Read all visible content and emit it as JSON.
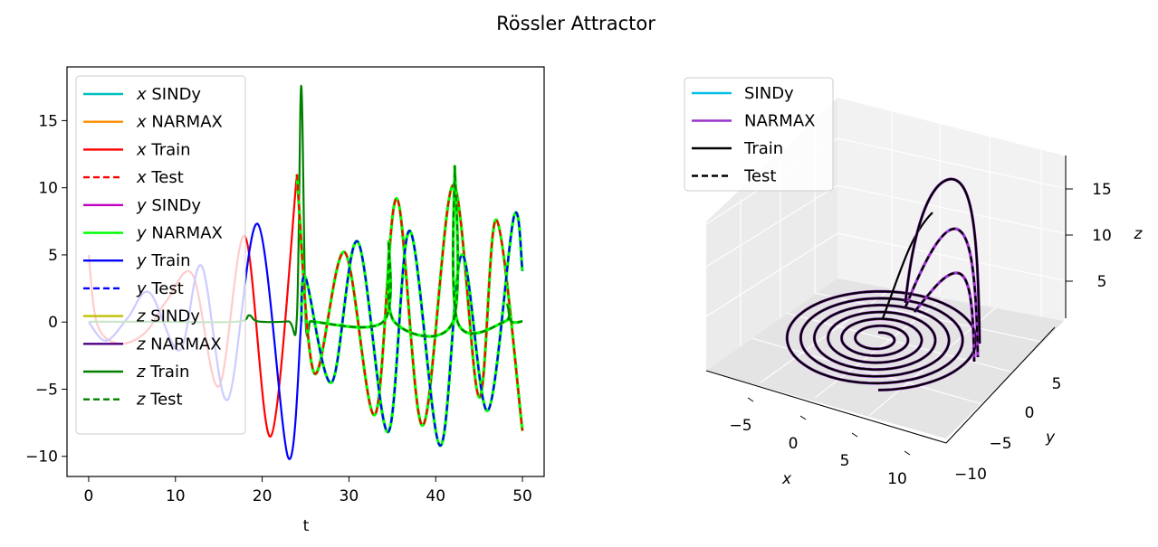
{
  "figure": {
    "suptitle": "Rössler Attractor"
  },
  "chart_data": [
    {
      "type": "line",
      "panel": "time-series",
      "xlabel": "t",
      "ylabel": "",
      "xlim": [
        -2.5,
        52.5
      ],
      "ylim": [
        -11.5,
        19.0
      ],
      "xticks": [
        0,
        10,
        20,
        30,
        40,
        50
      ],
      "yticks": [
        -10,
        -5,
        0,
        5,
        10,
        15
      ],
      "grid": false,
      "legend_position": "upper-left",
      "test_start_t": 24,
      "series": [
        {
          "name": "x SINDy",
          "sym": "x",
          "txt": "SINDy",
          "color": "#00bfbf",
          "dash": false
        },
        {
          "name": "x NARMAX",
          "sym": "x",
          "txt": "NARMAX",
          "color": "#ff8c00",
          "dash": false
        },
        {
          "name": "x Train",
          "sym": "x",
          "txt": "Train",
          "color": "#ff0000",
          "dash": false
        },
        {
          "name": "x Test",
          "sym": "x",
          "txt": "Test",
          "color": "#ff0000",
          "dash": true
        },
        {
          "name": "y SINDy",
          "sym": "y",
          "txt": "SINDy",
          "color": "#bf00bf",
          "dash": false
        },
        {
          "name": "y NARMAX",
          "sym": "y",
          "txt": "NARMAX",
          "color": "#00ff00",
          "dash": false
        },
        {
          "name": "y Train",
          "sym": "y",
          "txt": "Train",
          "color": "#0000ff",
          "dash": false
        },
        {
          "name": "y Test",
          "sym": "y",
          "txt": "Test",
          "color": "#0000ff",
          "dash": true
        },
        {
          "name": "z SINDy",
          "sym": "z",
          "txt": "SINDy",
          "color": "#bfbf00",
          "dash": false
        },
        {
          "name": "z NARMAX",
          "sym": "z",
          "txt": "NARMAX",
          "color": "#4b0082",
          "dash": false
        },
        {
          "name": "z Train",
          "sym": "z",
          "txt": "Train",
          "color": "#008000",
          "dash": false
        },
        {
          "name": "z Test",
          "sym": "z",
          "txt": "Test",
          "color": "#008000",
          "dash": true
        }
      ],
      "data": {
        "x_train": [
          [
            0,
            5
          ],
          [
            1,
            -0.2
          ],
          [
            3.5,
            -1.6
          ],
          [
            6.5,
            -0.8
          ],
          [
            9,
            1.6
          ],
          [
            12,
            3.5
          ],
          [
            15,
            -4.8
          ],
          [
            18,
            6.4
          ],
          [
            21,
            -8.5
          ],
          [
            24,
            11
          ]
        ],
        "x_test": [
          [
            24,
            11
          ],
          [
            26,
            -3.8
          ],
          [
            29.5,
            5.2
          ],
          [
            33,
            -6.9
          ],
          [
            35.5,
            9.2
          ],
          [
            38.5,
            -7.7
          ],
          [
            42,
            10.2
          ],
          [
            45,
            -5.6
          ],
          [
            47,
            7.6
          ],
          [
            50,
            -8.1
          ]
        ],
        "y_train": [
          [
            0,
            0
          ],
          [
            2,
            -1.4
          ],
          [
            4.5,
            0.3
          ],
          [
            7,
            2.2
          ],
          [
            10.5,
            -2.1
          ],
          [
            13,
            4.2
          ],
          [
            16,
            -5.8
          ],
          [
            19.5,
            7.3
          ],
          [
            23,
            -10.1
          ],
          [
            24.5,
            0
          ]
        ],
        "y_test": [
          [
            24.5,
            0
          ],
          [
            25,
            3.3
          ],
          [
            28,
            -4.5
          ],
          [
            31,
            6
          ],
          [
            34.5,
            -8.2
          ],
          [
            37,
            6.8
          ],
          [
            40.5,
            -9.2
          ],
          [
            43,
            5
          ],
          [
            46,
            -6.6
          ],
          [
            49,
            7.8
          ],
          [
            50,
            3.8
          ]
        ],
        "z_train": [
          [
            0,
            0.02
          ],
          [
            8,
            0.02
          ],
          [
            17,
            0.02
          ],
          [
            18.5,
            0.5
          ],
          [
            19.5,
            0.05
          ],
          [
            23,
            0.05
          ],
          [
            24,
            0.4
          ],
          [
            24.5,
            17.6
          ],
          [
            25,
            0.3
          ],
          [
            25.5,
            0.05
          ]
        ],
        "z_test": [
          [
            25.5,
            0.05
          ],
          [
            34,
            0.05
          ],
          [
            34.6,
            6
          ],
          [
            35.2,
            0.05
          ],
          [
            42,
            0.05
          ],
          [
            42.2,
            11.6
          ],
          [
            42.5,
            0.05
          ],
          [
            48,
            0.05
          ],
          [
            48.3,
            1.3
          ],
          [
            48.7,
            0.05
          ],
          [
            50,
            0.05
          ]
        ]
      }
    },
    {
      "type": "line",
      "panel": "3d-phase",
      "projection": "3d",
      "xlabel": "x",
      "ylabel": "y",
      "zlabel": "z",
      "xticks": [
        -5,
        0,
        5,
        10
      ],
      "yticks": [
        5,
        0,
        -5,
        -10
      ],
      "zticks": [
        5,
        10,
        15
      ],
      "grid": true,
      "legend_position": "upper-left",
      "series": [
        {
          "name": "SINDy",
          "color": "#00bfe6",
          "dash": false
        },
        {
          "name": "NARMAX",
          "color": "#9932cc",
          "dash": false
        },
        {
          "name": "Train",
          "color": "#000000",
          "dash": false
        },
        {
          "name": "Test",
          "color": "#000000",
          "dash": true
        }
      ],
      "trajectory": {
        "center_xy": [
          0,
          0
        ],
        "start_radius": 1.6,
        "end_radius": 10.5,
        "loops": 6.5,
        "z_peaks": [
          17.6,
          11.6,
          6,
          1.3
        ]
      }
    }
  ]
}
